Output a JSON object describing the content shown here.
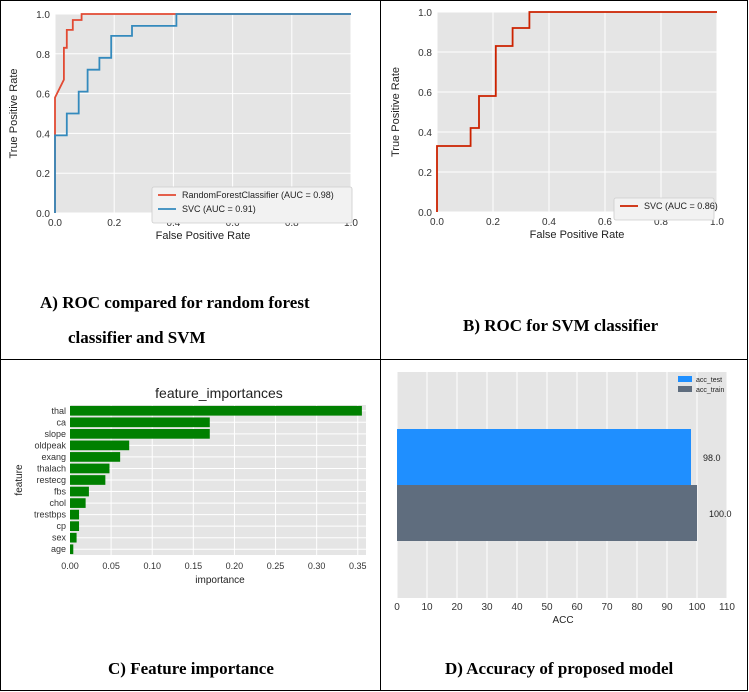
{
  "panels": {
    "a": {
      "caption_line1": "A)  ROC compared for random forest",
      "caption_line2": "classifier and SVM"
    },
    "b": {
      "caption": "B)  ROC for SVM classifier"
    },
    "c": {
      "caption": "C)  Feature importance"
    },
    "d": {
      "caption": "D)  Accuracy of proposed model"
    }
  },
  "chart_data": [
    {
      "id": "roc_compare",
      "type": "line",
      "title": "",
      "xlabel": "False Positive Rate",
      "ylabel": "True Positive Rate",
      "xlim": [
        0,
        1
      ],
      "ylim": [
        0,
        1
      ],
      "xticks": [
        "0.0",
        "0.2",
        "0.4",
        "0.6",
        "0.8",
        "1.0"
      ],
      "yticks": [
        "0.0",
        "0.2",
        "0.4",
        "0.6",
        "0.8",
        "1.0"
      ],
      "grid": true,
      "legend_position": "bottom-right",
      "series": [
        {
          "name": "RandomForestClassifier (AUC = 0.98)",
          "color": "#e24a33",
          "x": [
            0,
            0,
            0,
            0.03,
            0.03,
            0.04,
            0.04,
            0.06,
            0.06,
            0.09,
            0.09,
            1.0
          ],
          "y": [
            0,
            0.39,
            0.58,
            0.67,
            0.83,
            0.83,
            0.92,
            0.92,
            0.97,
            0.97,
            1.0,
            1.0
          ]
        },
        {
          "name": "SVC (AUC = 0.91)",
          "color": "#348abd",
          "x": [
            0,
            0,
            0.04,
            0.04,
            0.08,
            0.08,
            0.11,
            0.11,
            0.15,
            0.15,
            0.19,
            0.19,
            0.26,
            0.26,
            0.41,
            0.41,
            1.0
          ],
          "y": [
            0,
            0.39,
            0.39,
            0.5,
            0.5,
            0.61,
            0.61,
            0.72,
            0.72,
            0.78,
            0.78,
            0.89,
            0.89,
            0.94,
            0.94,
            1.0,
            1.0
          ]
        }
      ]
    },
    {
      "id": "roc_svm",
      "type": "line",
      "title": "",
      "xlabel": "False Positive Rate",
      "ylabel": "True Positive Rate",
      "xlim": [
        0,
        1
      ],
      "ylim": [
        0,
        1
      ],
      "xticks": [
        "0.0",
        "0.2",
        "0.4",
        "0.6",
        "0.8",
        "1.0"
      ],
      "yticks": [
        "0.0",
        "0.2",
        "0.4",
        "0.6",
        "0.8",
        "1.0"
      ],
      "grid": true,
      "legend_position": "bottom-right",
      "series": [
        {
          "name": "SVC (AUC = 0.86)",
          "color": "#cc2200",
          "x": [
            0,
            0,
            0.12,
            0.12,
            0.15,
            0.15,
            0.21,
            0.21,
            0.27,
            0.27,
            0.33,
            0.33,
            1.0
          ],
          "y": [
            0,
            0.33,
            0.33,
            0.42,
            0.42,
            0.58,
            0.58,
            0.83,
            0.83,
            0.92,
            0.92,
            1.0,
            1.0
          ]
        }
      ]
    },
    {
      "id": "feature_importance",
      "type": "bar",
      "orientation": "horizontal",
      "title": "feature_importances",
      "xlabel": "importance",
      "ylabel": "feature",
      "xlim": [
        0,
        0.36
      ],
      "xticks": [
        "0.00",
        "0.05",
        "0.10",
        "0.15",
        "0.20",
        "0.25",
        "0.30",
        "0.35"
      ],
      "grid": true,
      "color": "#008000",
      "categories": [
        "thal",
        "ca",
        "slope",
        "oldpeak",
        "exang",
        "thalach",
        "restecg",
        "fbs",
        "chol",
        "trestbps",
        "cp",
        "sex",
        "age"
      ],
      "values": [
        0.355,
        0.17,
        0.17,
        0.072,
        0.061,
        0.048,
        0.043,
        0.023,
        0.019,
        0.011,
        0.011,
        0.008,
        0.004
      ]
    },
    {
      "id": "accuracy",
      "type": "bar",
      "orientation": "horizontal",
      "title": "",
      "xlabel": "ACC",
      "ylabel": "",
      "xlim": [
        0,
        110
      ],
      "xticks": [
        "0",
        "10",
        "20",
        "30",
        "40",
        "50",
        "60",
        "70",
        "80",
        "90",
        "100",
        "110"
      ],
      "grid": true,
      "legend_position": "top-right",
      "series": [
        {
          "name": "acc_test",
          "value": 98.0,
          "label": "98.0",
          "color": "#1f8fff"
        },
        {
          "name": "acc_train",
          "value": 100.0,
          "label": "100.0",
          "color": "#5f6d7e"
        }
      ]
    }
  ]
}
